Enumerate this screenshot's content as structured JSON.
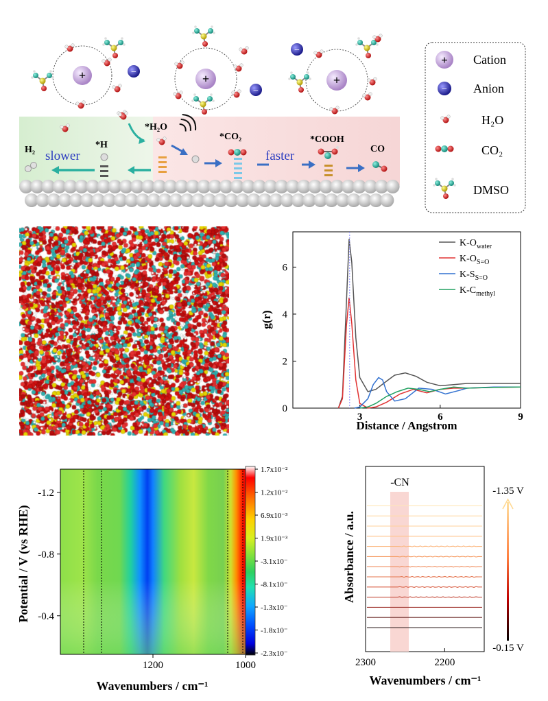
{
  "schematic": {
    "labels": {
      "h2": "H₂",
      "slower": "slower",
      "h_star": "*H",
      "h2o_star": "*H₂O",
      "co2_star": "*CO₂",
      "faster": "faster",
      "cooh_star": "*COOH",
      "co": "CO"
    },
    "legend": [
      {
        "icon": "cation-icon",
        "label": "Cation"
      },
      {
        "icon": "anion-icon",
        "label": "Anion"
      },
      {
        "icon": "h2o-molecule-icon",
        "label": "H₂O"
      },
      {
        "icon": "co2-molecule-icon",
        "label": "CO₂"
      },
      {
        "icon": "dmso-molecule-icon",
        "label": "DMSO"
      }
    ],
    "colors": {
      "cation": "#c9a6e0",
      "anion": "#3b3bb5",
      "arrow": "#2ab0a0",
      "arrow_blue": "#3a6fc4",
      "text_blue": "#2b3cc0",
      "surface_green": "#d9efd2",
      "surface_pink": "#f8dede"
    }
  },
  "chart_data": [
    {
      "type": "line",
      "title": "",
      "xlabel": "Distance / Angstrom",
      "ylabel": "g(r)",
      "xlim": [
        0.5,
        9
      ],
      "ylim": [
        0,
        7.5
      ],
      "xticks": [
        "3",
        "6",
        "9"
      ],
      "yticks": [
        "0",
        "2",
        "4",
        "6"
      ],
      "legend_position": "top-right",
      "series": [
        {
          "name": "K-O_water",
          "name_base": "K-O",
          "name_sub": "water",
          "color": "#555555",
          "x": [
            2.2,
            2.35,
            2.5,
            2.6,
            2.7,
            2.85,
            3.0,
            3.3,
            3.6,
            4.0,
            4.3,
            4.7,
            5.1,
            5.5,
            6.0,
            6.5,
            7.0,
            8.0,
            9.0
          ],
          "y": [
            0,
            0.5,
            4.5,
            7.2,
            6.2,
            3.0,
            1.3,
            0.7,
            0.8,
            1.15,
            1.4,
            1.5,
            1.35,
            1.1,
            0.95,
            1.0,
            1.05,
            1.05,
            1.05
          ]
        },
        {
          "name": "K-O_S=O",
          "name_base": "K-O",
          "name_sub": "S=O",
          "color": "#e03030",
          "x": [
            2.2,
            2.35,
            2.5,
            2.6,
            2.7,
            2.85,
            3.0,
            3.3,
            3.6,
            4.0,
            4.5,
            5.0,
            5.5,
            6.0,
            6.5,
            7.0,
            8.0,
            9.0
          ],
          "y": [
            0,
            0.4,
            3.5,
            4.7,
            3.6,
            1.2,
            0.2,
            0.0,
            0.05,
            0.25,
            0.6,
            0.8,
            0.65,
            0.8,
            0.85,
            0.85,
            0.88,
            0.9
          ]
        },
        {
          "name": "K-S_S=O",
          "name_base": "K-S",
          "name_sub": "S=O",
          "color": "#3070d0",
          "x": [
            2.8,
            3.0,
            3.3,
            3.5,
            3.7,
            3.85,
            4.0,
            4.3,
            4.7,
            5.2,
            5.7,
            6.2,
            6.7,
            7.0,
            8.0,
            9.0
          ],
          "y": [
            0,
            0.05,
            0.4,
            1.0,
            1.3,
            1.2,
            0.7,
            0.3,
            0.4,
            0.85,
            0.8,
            0.6,
            0.75,
            0.85,
            0.9,
            0.9
          ]
        },
        {
          "name": "K-C_methyl",
          "name_base": "K-C",
          "name_sub": "methyl",
          "color": "#20a060",
          "x": [
            3.0,
            3.3,
            3.6,
            4.0,
            4.4,
            4.8,
            5.2,
            5.6,
            6.0,
            6.5,
            7.0,
            8.0,
            9.0
          ],
          "y": [
            0,
            0.05,
            0.2,
            0.5,
            0.7,
            0.85,
            0.8,
            0.7,
            0.8,
            0.9,
            0.85,
            0.88,
            0.9
          ]
        }
      ]
    },
    {
      "type": "heatmap",
      "title": "",
      "xlabel": "Wavenumbers / cm⁻¹",
      "ylabel": "Potential / V (vs RHE)",
      "xlim": [
        1400,
        1000
      ],
      "ylim": [
        -0.15,
        -1.35
      ],
      "xticks": [
        "1200",
        "1000"
      ],
      "yticks": [
        "-1.2",
        "-0.8",
        "-0.4"
      ],
      "colorbar_ticks": [
        "1.7x10⁻²",
        "1.2x10⁻²",
        "6.9x10⁻³",
        "1.9x10⁻³",
        "-3.1x10⁻³",
        "-8.1x10⁻³",
        "-1.3x10⁻²",
        "-1.8x10⁻²",
        "-2.3x10⁻²"
      ],
      "colorbar_colors": [
        "#ffffff",
        "#ff0000",
        "#ff7a00",
        "#ffd000",
        "#d8f020",
        "#78e040",
        "#2ed060",
        "#20e0b0",
        "#10a8ff",
        "#0050ff",
        "#0000e0",
        "#000000"
      ],
      "features": [
        {
          "kind": "negative band",
          "wavenumber": 1220,
          "value": -0.023
        },
        {
          "kind": "positive band",
          "wavenumber": 1010,
          "value": 0.017
        }
      ]
    },
    {
      "type": "line",
      "title": "",
      "xlabel": "Wavenumbers / cm⁻¹",
      "ylabel": "Absorbance / a.u.",
      "xlim": [
        2300,
        2150
      ],
      "xticks": [
        "2300",
        "2200"
      ],
      "annotation": "-CN",
      "highlight_range": [
        2270,
        2245
      ],
      "potential_top": "-1.35 V",
      "potential_bottom": "-0.15 V",
      "series_count": 13,
      "series_colors": [
        "#ffe6b8",
        "#ffdcab",
        "#ffd09a",
        "#ffc48a",
        "#fbb47a",
        "#f6a06a",
        "#ef8c5c",
        "#e5744e",
        "#d85e43",
        "#c44a3a",
        "#a23a33",
        "#6d2a28",
        "#2a1a1a"
      ]
    }
  ]
}
